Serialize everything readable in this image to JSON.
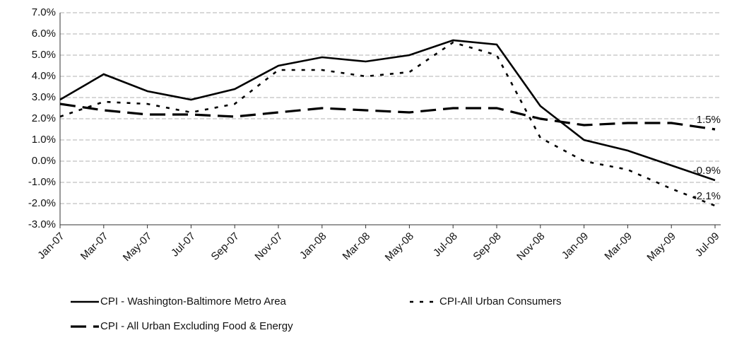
{
  "chart_data": {
    "type": "line",
    "categories": [
      "Jan-07",
      "Mar-07",
      "May-07",
      "Jul-07",
      "Sep-07",
      "Nov-07",
      "Jan-08",
      "Mar-08",
      "May-08",
      "Jul-08",
      "Sep-08",
      "Nov-08",
      "Jan-09",
      "Mar-09",
      "May-09",
      "Jul-09"
    ],
    "series": [
      {
        "name": "CPI - Washington-Baltimore Metro Area",
        "color": "#000000",
        "style": "solid",
        "values": [
          2.9,
          4.1,
          3.3,
          2.9,
          3.4,
          4.5,
          4.9,
          4.7,
          5.0,
          5.7,
          5.5,
          2.6,
          1.0,
          0.5,
          -0.2,
          -0.9
        ],
        "value_labels": [
          null,
          null,
          null,
          null,
          null,
          null,
          null,
          null,
          null,
          null,
          null,
          null,
          null,
          null,
          null,
          "-0.9%"
        ]
      },
      {
        "name": "CPI-All Urban Consumers",
        "color": "#000000",
        "style": "dotted",
        "values": [
          2.1,
          2.8,
          2.7,
          2.3,
          2.7,
          4.3,
          4.3,
          4.0,
          4.2,
          5.6,
          5.0,
          1.1,
          0.0,
          -0.4,
          -1.3,
          -2.1
        ],
        "value_labels": [
          null,
          null,
          null,
          null,
          null,
          null,
          null,
          null,
          null,
          null,
          null,
          null,
          null,
          null,
          null,
          "-2.1%"
        ]
      },
      {
        "name": "CPI - All Urban Excluding Food & Energy",
        "color": "#000000",
        "style": "dashed",
        "values": [
          2.7,
          2.4,
          2.2,
          2.2,
          2.1,
          2.3,
          2.5,
          2.4,
          2.3,
          2.5,
          2.5,
          2.0,
          1.7,
          1.8,
          1.8,
          1.5
        ],
        "value_labels": [
          null,
          null,
          null,
          null,
          null,
          null,
          null,
          null,
          null,
          null,
          null,
          null,
          null,
          null,
          null,
          "1.5%"
        ]
      }
    ],
    "ylim": [
      -3,
      7
    ],
    "yticks": [
      {
        "value": -3,
        "label": "-3.0%"
      },
      {
        "value": -2,
        "label": "-2.0%"
      },
      {
        "value": -1,
        "label": "-1.0%"
      },
      {
        "value": 0,
        "label": "0.0%"
      },
      {
        "value": 1,
        "label": "1.0%"
      },
      {
        "value": 2,
        "label": "2.0%"
      },
      {
        "value": 3,
        "label": "3.0%"
      },
      {
        "value": 4,
        "label": "4.0%"
      },
      {
        "value": 5,
        "label": "5.0%"
      },
      {
        "value": 6,
        "label": "6.0%"
      },
      {
        "value": 7,
        "label": "7.0%"
      }
    ],
    "grid": true,
    "legend": "bottom"
  }
}
